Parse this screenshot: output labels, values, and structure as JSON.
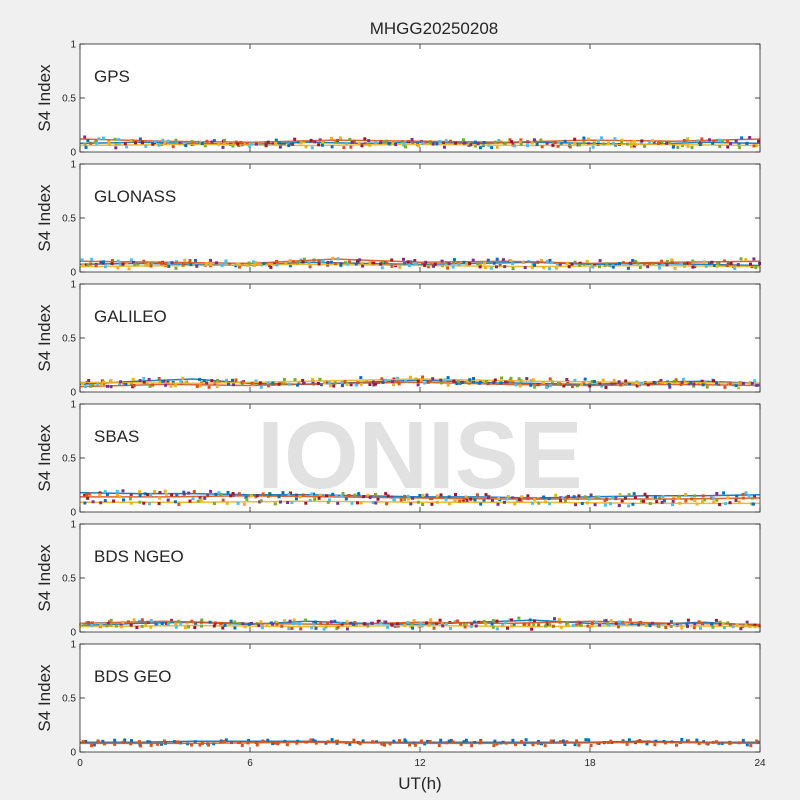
{
  "figure": {
    "title": "MHGG20250208",
    "watermark": "IONISE",
    "xlabel": "UT(h)",
    "ylabel": "S4 Index"
  },
  "chart_data": {
    "type": "scatter",
    "xlim": [
      0,
      24
    ],
    "xticks": [
      0,
      6,
      12,
      18,
      24
    ],
    "ylim": [
      0,
      1
    ],
    "yticks": [
      "0",
      "0.5",
      "1"
    ],
    "grid": false,
    "series_colors": [
      "#0072BD",
      "#D95319",
      "#EDB120",
      "#7E2F8E",
      "#77AC30",
      "#4DBEEE",
      "#A2142F"
    ],
    "panels": [
      {
        "label": "GPS",
        "series": [
          {
            "x": [
              0,
              2,
              4,
              6,
              8,
              10,
              12,
              14,
              16,
              18,
              20,
              22,
              24
            ],
            "y": [
              0.08,
              0.09,
              0.08,
              0.07,
              0.09,
              0.08,
              0.09,
              0.08,
              0.09,
              0.08,
              0.07,
              0.09,
              0.08
            ]
          },
          {
            "x": [
              0,
              3,
              6,
              9,
              12,
              15,
              18,
              21,
              24
            ],
            "y": [
              0.12,
              0.1,
              0.09,
              0.11,
              0.1,
              0.09,
              0.11,
              0.1,
              0.12
            ]
          },
          {
            "x": [
              0,
              4,
              8,
              12,
              16,
              20,
              24
            ],
            "y": [
              0.06,
              0.07,
              0.06,
              0.07,
              0.06,
              0.07,
              0.06
            ]
          }
        ]
      },
      {
        "label": "GLONASS",
        "series": [
          {
            "x": [
              0,
              2,
              4,
              6,
              8,
              10,
              12,
              14,
              16,
              18,
              20,
              22,
              24
            ],
            "y": [
              0.07,
              0.08,
              0.07,
              0.06,
              0.09,
              0.08,
              0.07,
              0.08,
              0.09,
              0.07,
              0.08,
              0.07,
              0.06
            ]
          },
          {
            "x": [
              0,
              3,
              6,
              9,
              12,
              15,
              18,
              21,
              24
            ],
            "y": [
              0.1,
              0.09,
              0.08,
              0.12,
              0.09,
              0.1,
              0.08,
              0.09,
              0.1
            ]
          },
          {
            "x": [
              0,
              4,
              8,
              12,
              16,
              20,
              24
            ],
            "y": [
              0.05,
              0.06,
              0.07,
              0.06,
              0.05,
              0.06,
              0.05
            ]
          }
        ]
      },
      {
        "label": "GALILEO",
        "series": [
          {
            "x": [
              0,
              2,
              4,
              6,
              8,
              10,
              12,
              14,
              16,
              18,
              20,
              22,
              24
            ],
            "y": [
              0.07,
              0.1,
              0.12,
              0.08,
              0.07,
              0.09,
              0.11,
              0.09,
              0.08,
              0.07,
              0.09,
              0.1,
              0.08
            ]
          },
          {
            "x": [
              0,
              3,
              6,
              9,
              12,
              15,
              18,
              21,
              24
            ],
            "y": [
              0.05,
              0.07,
              0.06,
              0.08,
              0.09,
              0.07,
              0.06,
              0.07,
              0.06
            ]
          },
          {
            "x": [
              0,
              4,
              8,
              12,
              16,
              20,
              24
            ],
            "y": [
              0.09,
              0.08,
              0.1,
              0.12,
              0.1,
              0.09,
              0.08
            ]
          }
        ]
      },
      {
        "label": "SBAS",
        "series": [
          {
            "x": [
              0,
              2,
              4,
              6,
              8,
              10,
              12,
              14,
              16,
              18,
              20,
              22,
              24
            ],
            "y": [
              0.18,
              0.17,
              0.17,
              0.16,
              0.16,
              0.15,
              0.14,
              0.14,
              0.13,
              0.14,
              0.15,
              0.15,
              0.16
            ]
          },
          {
            "x": [
              0,
              3,
              6,
              9,
              12,
              15,
              18,
              21,
              24
            ],
            "y": [
              0.14,
              0.14,
              0.15,
              0.14,
              0.13,
              0.12,
              0.12,
              0.12,
              0.13
            ]
          },
          {
            "x": [
              0,
              4,
              8,
              12,
              16,
              20,
              24
            ],
            "y": [
              0.09,
              0.09,
              0.1,
              0.09,
              0.09,
              0.08,
              0.08
            ]
          }
        ]
      },
      {
        "label": "BDS NGEO",
        "series": [
          {
            "x": [
              0,
              2,
              4,
              6,
              8,
              10,
              12,
              14,
              16,
              18,
              20,
              22,
              24
            ],
            "y": [
              0.06,
              0.08,
              0.09,
              0.07,
              0.1,
              0.08,
              0.07,
              0.09,
              0.11,
              0.08,
              0.07,
              0.09,
              0.06
            ]
          },
          {
            "x": [
              0,
              3,
              6,
              9,
              12,
              15,
              18,
              21,
              24
            ],
            "y": [
              0.08,
              0.1,
              0.08,
              0.07,
              0.09,
              0.08,
              0.1,
              0.08,
              0.07
            ]
          },
          {
            "x": [
              0,
              4,
              8,
              12,
              16,
              20,
              24
            ],
            "y": [
              0.05,
              0.06,
              0.05,
              0.06,
              0.05,
              0.06,
              0.05
            ]
          }
        ]
      },
      {
        "label": "BDS GEO",
        "series": [
          {
            "x": [
              0,
              2,
              4,
              6,
              8,
              10,
              12,
              14,
              16,
              18,
              20,
              22,
              24
            ],
            "y": [
              0.09,
              0.09,
              0.1,
              0.1,
              0.1,
              0.09,
              0.09,
              0.09,
              0.09,
              0.09,
              0.1,
              0.09,
              0.09
            ]
          },
          {
            "x": [
              0,
              4,
              8,
              12,
              16,
              20,
              24
            ],
            "y": [
              0.08,
              0.08,
              0.09,
              0.08,
              0.08,
              0.09,
              0.08
            ]
          }
        ]
      }
    ]
  }
}
